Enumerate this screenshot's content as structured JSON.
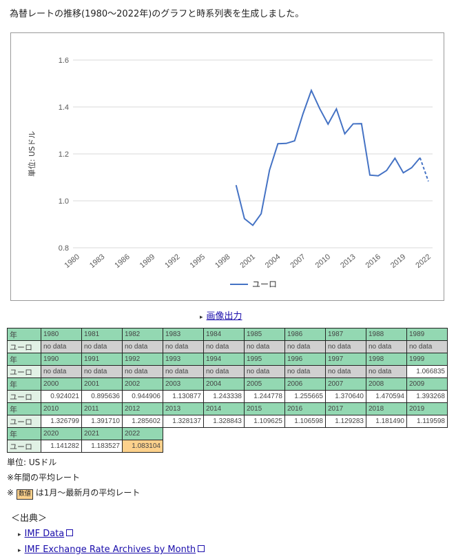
{
  "title": "為替レートの推移(1980〜2022年)のグラフと時系列表を生成しました。",
  "export_link": "画像出力",
  "chart_data": {
    "type": "line",
    "ylabel": "単位: USドル",
    "ylim": [
      0.8,
      1.6
    ],
    "yticks": [
      "0.8",
      "1.0",
      "1.2",
      "1.4",
      "1.6"
    ],
    "x": [
      1980,
      1981,
      1982,
      1983,
      1984,
      1985,
      1986,
      1987,
      1988,
      1989,
      1990,
      1991,
      1992,
      1993,
      1994,
      1995,
      1996,
      1997,
      1998,
      1999,
      2000,
      2001,
      2002,
      2003,
      2004,
      2005,
      2006,
      2007,
      2008,
      2009,
      2010,
      2011,
      2012,
      2013,
      2014,
      2015,
      2016,
      2017,
      2018,
      2019,
      2020,
      2021,
      2022
    ],
    "xticks": [
      "1980",
      "1983",
      "1986",
      "1989",
      "1992",
      "1995",
      "1998",
      "2001",
      "2004",
      "2007",
      "2010",
      "2013",
      "2016",
      "2019",
      "2022"
    ],
    "series": [
      {
        "name": "ユーロ",
        "color": "#4472c4",
        "values": [
          null,
          null,
          null,
          null,
          null,
          null,
          null,
          null,
          null,
          null,
          null,
          null,
          null,
          null,
          null,
          null,
          null,
          null,
          null,
          1.066835,
          0.924021,
          0.895636,
          0.944906,
          1.130877,
          1.243338,
          1.244778,
          1.255665,
          1.37064,
          1.470594,
          1.393268,
          1.326799,
          1.39171,
          1.285602,
          1.328137,
          1.328843,
          1.109625,
          1.106598,
          1.129283,
          1.18149,
          1.119598,
          1.141282,
          1.183527,
          1.083104
        ]
      }
    ],
    "legend": "bottom"
  },
  "table": {
    "year_label": "年",
    "row_label": "ユーロ",
    "no_data": "no data",
    "highlight_year": "2022",
    "years": [
      "1980",
      "1981",
      "1982",
      "1983",
      "1984",
      "1985",
      "1986",
      "1987",
      "1988",
      "1989",
      "1990",
      "1991",
      "1992",
      "1993",
      "1994",
      "1995",
      "1996",
      "1997",
      "1998",
      "1999",
      "2000",
      "2001",
      "2002",
      "2003",
      "2004",
      "2005",
      "2006",
      "2007",
      "2008",
      "2009",
      "2010",
      "2011",
      "2012",
      "2013",
      "2014",
      "2015",
      "2016",
      "2017",
      "2018",
      "2019",
      "2020",
      "2021",
      "2022"
    ],
    "values": [
      "no data",
      "no data",
      "no data",
      "no data",
      "no data",
      "no data",
      "no data",
      "no data",
      "no data",
      "no data",
      "no data",
      "no data",
      "no data",
      "no data",
      "no data",
      "no data",
      "no data",
      "no data",
      "no data",
      "1.066835",
      "0.924021",
      "0.895636",
      "0.944906",
      "1.130877",
      "1.243338",
      "1.244778",
      "1.255665",
      "1.370640",
      "1.470594",
      "1.393268",
      "1.326799",
      "1.391710",
      "1.285602",
      "1.328137",
      "1.328843",
      "1.109625",
      "1.106598",
      "1.129283",
      "1.181490",
      "1.119598",
      "1.141282",
      "1.183527",
      "1.083104"
    ]
  },
  "notes": {
    "unit": "単位: USドル",
    "annual": "※年間の平均レート",
    "mark": "※",
    "badge": "数値",
    "badge_note": "は1月〜最新月の平均レート"
  },
  "sources": {
    "heading": "＜出典＞",
    "links": [
      "IMF Data",
      "IMF Exchange Rate Archives by Month"
    ]
  }
}
